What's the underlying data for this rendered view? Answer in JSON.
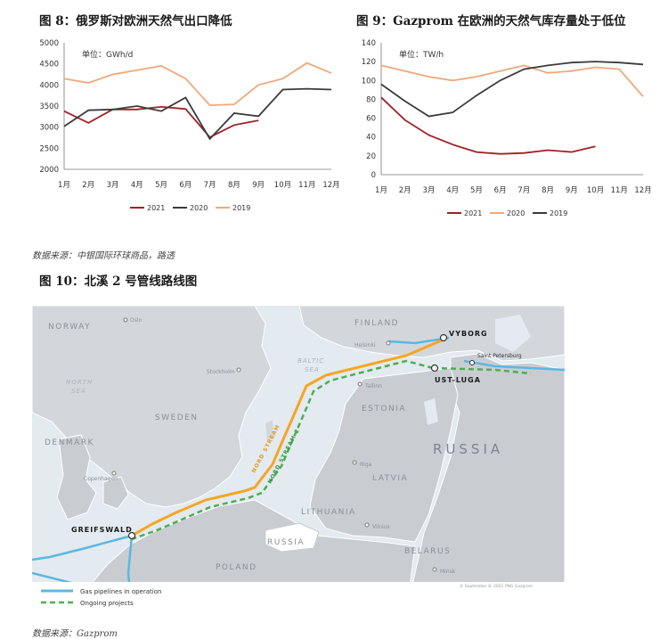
{
  "fig8": {
    "title": "图 8：俄罗斯对欧洲天然气出口降低",
    "unit": "单位：GWh/d",
    "chart_data": {
      "type": "line",
      "categories": [
        "1月",
        "2月",
        "3月",
        "4月",
        "5月",
        "6月",
        "7月",
        "8月",
        "9月",
        "10月",
        "11月",
        "12月"
      ],
      "ylim": [
        2000,
        5000
      ],
      "yticks": [
        2000,
        2500,
        3000,
        3500,
        4000,
        4500,
        5000
      ],
      "series": [
        {
          "name": "2021",
          "color": "#a31f24",
          "values": [
            3380,
            3100,
            3420,
            3420,
            3480,
            3430,
            2760,
            3050,
            3160,
            null,
            null,
            null
          ]
        },
        {
          "name": "2020",
          "color": "#3b3b3b",
          "values": [
            3020,
            3400,
            3420,
            3500,
            3380,
            3700,
            2720,
            3330,
            3260,
            3890,
            3910,
            3890
          ]
        },
        {
          "name": "2019",
          "color": "#f0a878",
          "values": [
            4150,
            4050,
            4250,
            4350,
            4450,
            4150,
            3520,
            3540,
            4000,
            4150,
            4520,
            4280
          ]
        }
      ]
    }
  },
  "fig9": {
    "title": "图 9：Gazprom 在欧洲的天然气库存量处于低位",
    "unit": "单位：TW/h",
    "chart_data": {
      "type": "line",
      "categories": [
        "1月",
        "2月",
        "3月",
        "4月",
        "5月",
        "6月",
        "7月",
        "8月",
        "9月",
        "10月",
        "11月",
        "12月"
      ],
      "ylim": [
        0,
        140
      ],
      "yticks": [
        0,
        20,
        40,
        60,
        80,
        100,
        120,
        140
      ],
      "series": [
        {
          "name": "2021",
          "color": "#a31f24",
          "values": [
            82,
            58,
            42,
            32,
            24,
            22,
            23,
            26,
            24,
            30,
            null,
            null
          ]
        },
        {
          "name": "2020",
          "color": "#f0a878",
          "values": [
            116,
            110,
            104,
            100,
            104,
            110,
            116,
            108,
            110,
            114,
            112,
            83
          ]
        },
        {
          "name": "2019",
          "color": "#3b3b3b",
          "values": [
            96,
            78,
            62,
            66,
            84,
            100,
            112,
            116,
            119,
            120,
            119,
            117
          ]
        }
      ]
    }
  },
  "source1": "数据来源：中银国际环球商品，路透",
  "fig10": {
    "title": "图 10：北溪 2 号管线路线图",
    "labels": {
      "norway": "NORWAY",
      "oslo": "Oslo",
      "finland": "FINLAND",
      "helsinki": "Helsinki",
      "vyborg": "VYBORG",
      "stpetersburg": "Saint Petersburg",
      "ustluga": "UST-LUGA",
      "stockholm": "Stockholm",
      "baltic": "BALTIC",
      "sea": "SEA",
      "north": "NORTH",
      "northsea2": "SEA",
      "tallinn": "Tallinn",
      "estonia": "ESTONIA",
      "sweden": "SWEDEN",
      "russia": "RUSSIA",
      "denmark": "DENMARK",
      "copenhagen": "Copenhagen",
      "riga": "Riga",
      "latvia": "LATVIA",
      "nordstream": "NORD STREAM",
      "nordstream2": "NORD STREAM 2",
      "lithuania": "LITHUANIA",
      "vilnius": "Vilnius",
      "russia2": "RUSSIA",
      "greifswald": "GREIFSWALD",
      "belarus": "BELARUS",
      "poland": "POLAND",
      "minsk": "Minsk",
      "copyright": "© September 8, 2021 PNG Gazprom"
    },
    "legend": {
      "operation": "Gas pipelines in operation",
      "ongoing": "Ongoing projects"
    },
    "colors": {
      "water": "#e3eaf0",
      "land": "#c9cdd2",
      "land_light": "#d8dbdf",
      "operation": "#5bb8e0",
      "ongoing": "#4caf50",
      "nordstream": "#f5a623"
    }
  },
  "source2": "数据来源：Gazprom"
}
